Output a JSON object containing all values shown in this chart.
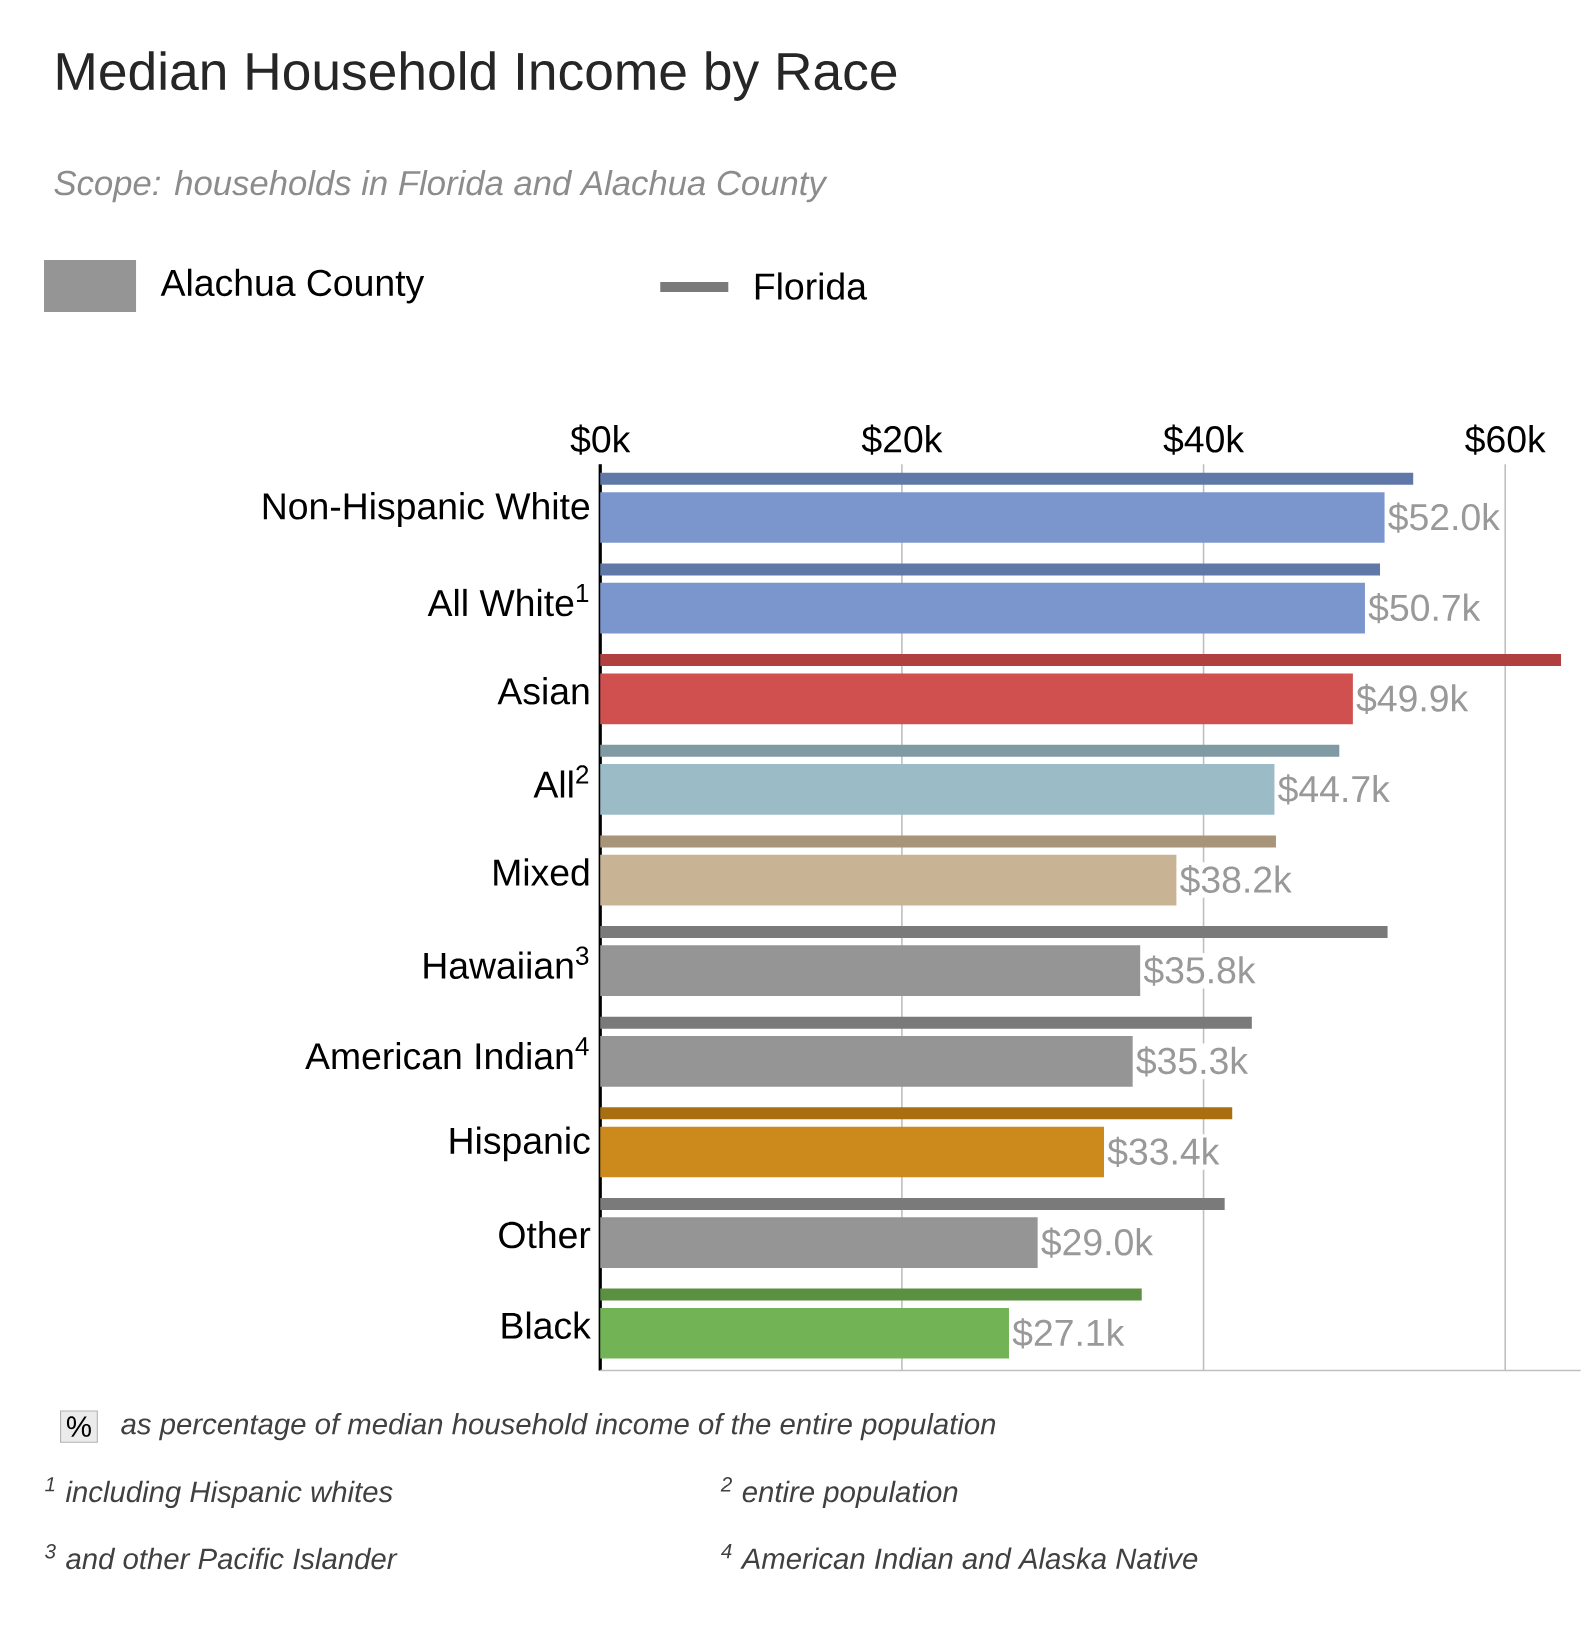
{
  "chart_data": {
    "type": "bar",
    "orientation": "horizontal",
    "title": "Median Household Income by Race",
    "subtitle": "Scope: households in Florida and Alachua County",
    "categories": [
      "Non-Hispanic White",
      "All White$^{1}$",
      "Asian",
      "All$^{2}$",
      "Mixed",
      "Hawaiian$^{3}$",
      "American Indian$^{4}$",
      "Hispanic",
      "Other",
      "Black"
    ],
    "series": [
      {
        "name": "Alachua County",
        "color": "#959595",
        "colors": [
          "#7b96cc",
          "#7b96cc",
          "#d05050",
          "#9bbcc6",
          "#c9b395",
          "#959595",
          "#959595",
          "#cc8a1c",
          "#959595",
          "#72b455"
        ],
        "values": [
          52.0,
          50.7,
          49.9,
          44.7,
          38.2,
          35.8,
          35.3,
          33.4,
          29.0,
          27.1
        ],
        "value_labels": [
          "$52.0k",
          "$50.7k",
          "$49.9k",
          "$44.7k",
          "$38.2k",
          "$35.8k",
          "$35.3k",
          "$33.4k",
          "$29.0k",
          "$27.1k"
        ]
      },
      {
        "name": "Florida",
        "color": "#7a7a7a",
        "colors": [
          "#6078a8",
          "#6078a8",
          "#b04040",
          "#7f9aa3",
          "#a89478",
          "#7a7a7a",
          "#7a7a7a",
          "#a86e10",
          "#7a7a7a",
          "#5a9040"
        ],
        "values": [
          53.9,
          51.7,
          63.7,
          49.0,
          44.8,
          52.2,
          43.2,
          41.9,
          41.4,
          35.9
        ]
      }
    ],
    "xlim": [
      0,
      65
    ],
    "xticks": [
      {
        "value": 0,
        "label": "$0k"
      },
      {
        "value": 20,
        "label": "$20k"
      },
      {
        "value": 40,
        "label": "$40k"
      },
      {
        "value": 60,
        "label": "$60k"
      }
    ],
    "grid": "x",
    "legend": "top left",
    "annotations": [
      "%",
      "as percentage of median household income of the entire population",
      "$^{1}$ including Hispanic whites",
      "$^{2}$ entire population",
      "$^{3}$ and other Pacific Islander",
      "$^{4}$ American Indian and Alaska Native"
    ]
  }
}
